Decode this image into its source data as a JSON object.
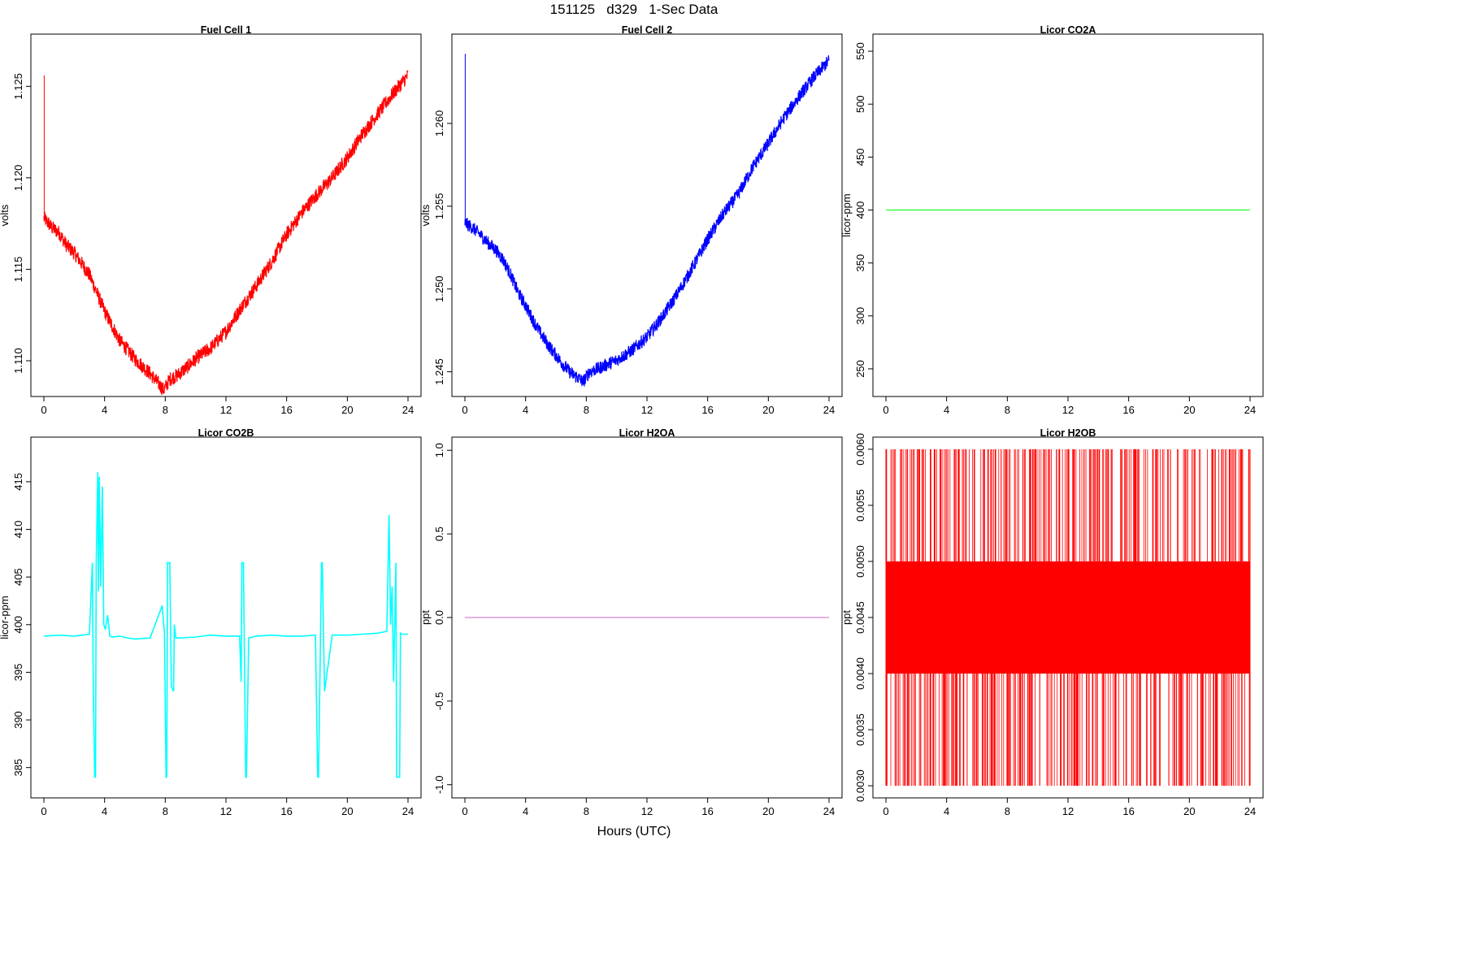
{
  "figure": {
    "title": "151125   d329   1-Sec Data",
    "xlabel": "Hours (UTC)"
  },
  "chart_data": [
    {
      "type": "line",
      "title": "Fuel Cell 1",
      "ylabel": "volts",
      "color": "#ff0000",
      "xlim": [
        0,
        24
      ],
      "ylim": [
        1.1084,
        1.1275
      ],
      "xticks": [
        0,
        4,
        8,
        12,
        16,
        20,
        24
      ],
      "yticks": [
        "1.110",
        "1.115",
        "1.120",
        "1.125"
      ],
      "noise": 0.0004,
      "spike": {
        "x": 0.02,
        "y_from": 1.118,
        "y_to": 1.1256
      },
      "x": [
        0,
        0.5,
        1,
        1.5,
        2,
        2.5,
        3,
        3.5,
        4,
        4.5,
        5,
        5.5,
        6,
        6.5,
        7,
        7.5,
        7.9,
        8.3,
        8.8,
        9.5,
        10,
        11,
        12,
        13,
        14,
        15,
        16,
        17,
        18,
        19,
        20,
        21,
        22,
        23,
        24
      ],
      "y": [
        1.1178,
        1.1173,
        1.117,
        1.1163,
        1.1159,
        1.1153,
        1.1147,
        1.1137,
        1.1127,
        1.1119,
        1.1111,
        1.1106,
        1.1101,
        1.1097,
        1.1093,
        1.1088,
        1.1084,
        1.109,
        1.1092,
        1.1097,
        1.1101,
        1.1107,
        1.1116,
        1.1129,
        1.1141,
        1.1154,
        1.1169,
        1.1181,
        1.1191,
        1.12,
        1.1211,
        1.1224,
        1.1235,
        1.1246,
        1.1256
      ]
    },
    {
      "type": "line",
      "title": "Fuel Cell 2",
      "ylabel": "volts",
      "color": "#0000ff",
      "xlim": [
        0,
        24
      ],
      "ylim": [
        1.2439,
        1.265
      ],
      "xticks": [
        0,
        4,
        8,
        12,
        16,
        20,
        24
      ],
      "yticks": [
        "1.245",
        "1.250",
        "1.255",
        "1.260"
      ],
      "noise": 0.0004,
      "spike": {
        "x": 0.02,
        "y_from": 1.2542,
        "y_to": 1.2642
      },
      "x": [
        0,
        0.5,
        1,
        1.5,
        2,
        2.5,
        3,
        3.5,
        4,
        4.5,
        5,
        5.5,
        6,
        6.5,
        7,
        7.5,
        7.8,
        8.2,
        8.8,
        9.5,
        10,
        11,
        12,
        13,
        14,
        15,
        16,
        17,
        18,
        19,
        20,
        21,
        22,
        23,
        24
      ],
      "y": [
        1.254,
        1.2537,
        1.2533,
        1.2528,
        1.2524,
        1.2518,
        1.2509,
        1.2498,
        1.249,
        1.2481,
        1.2473,
        1.2466,
        1.246,
        1.2454,
        1.2449,
        1.2446,
        1.2444,
        1.245,
        1.2452,
        1.2455,
        1.2457,
        1.2463,
        1.2471,
        1.2483,
        1.2497,
        1.2513,
        1.253,
        1.2545,
        1.2557,
        1.2574,
        1.2588,
        1.2603,
        1.2616,
        1.2628,
        1.2638
      ]
    },
    {
      "type": "line",
      "title": "Licor CO2A",
      "ylabel": "licor-ppm",
      "color": "#00ff00",
      "xlim": [
        0,
        24
      ],
      "ylim": [
        230,
        560
      ],
      "xticks": [
        0,
        4,
        8,
        12,
        16,
        20,
        24
      ],
      "yticks": [
        "250",
        "300",
        "350",
        "400",
        "450",
        "500",
        "550"
      ],
      "x": [
        0,
        24
      ],
      "y": [
        400,
        400
      ]
    },
    {
      "type": "line",
      "title": "Licor CO2B",
      "ylabel": "licor-ppm",
      "color": "#00ffff",
      "xlim": [
        0,
        24
      ],
      "ylim": [
        382.5,
        419
      ],
      "xticks": [
        0,
        4,
        8,
        12,
        16,
        20,
        24
      ],
      "yticks": [
        "385",
        "390",
        "395",
        "400",
        "405",
        "410",
        "415"
      ],
      "x": [
        0,
        1,
        2,
        3,
        3.2,
        3.25,
        3.35,
        3.4,
        3.45,
        3.55,
        3.6,
        3.65,
        3.75,
        3.85,
        3.95,
        4.05,
        4.2,
        4.35,
        4.5,
        5,
        5.5,
        6,
        7,
        7.8,
        7.95,
        8.05,
        8.1,
        8.15,
        8.3,
        8.4,
        8.55,
        8.6,
        8.7,
        9,
        10,
        11,
        12,
        12.9,
        13.0,
        13.05,
        13.15,
        13.3,
        13.35,
        13.5,
        14,
        15,
        16,
        17,
        17.9,
        18.05,
        18.1,
        18.3,
        18.35,
        18.5,
        19,
        20,
        21,
        22,
        22.6,
        22.75,
        22.85,
        22.95,
        23.05,
        23.2,
        23.25,
        23.45,
        23.5,
        23.6,
        24
      ],
      "y": [
        398.8,
        398.9,
        398.8,
        399.0,
        406.5,
        394.0,
        384.0,
        384.0,
        406.5,
        416.0,
        403.5,
        415.5,
        404.0,
        414.5,
        400.0,
        399.5,
        401.0,
        398.8,
        398.7,
        398.8,
        398.6,
        398.5,
        398.6,
        402.0,
        399.0,
        384.0,
        384.0,
        406.5,
        406.5,
        393.5,
        393.0,
        400.0,
        398.6,
        398.6,
        398.7,
        398.9,
        398.8,
        398.8,
        394.0,
        406.5,
        406.5,
        384.0,
        384.0,
        398.6,
        398.8,
        398.9,
        398.8,
        398.8,
        398.9,
        384.0,
        384.0,
        406.5,
        406.5,
        393.0,
        398.9,
        398.9,
        399.0,
        399.1,
        399.3,
        411.5,
        400.0,
        404.0,
        394.0,
        406.5,
        384.0,
        384.0,
        399.1,
        399.0,
        399.0
      ]
    },
    {
      "type": "line",
      "title": "Licor H2OA",
      "ylabel": "ppt",
      "color": "#cc66cc",
      "xlim": [
        0,
        24
      ],
      "ylim": [
        -1.04,
        1.04
      ],
      "xticks": [
        0,
        4,
        8,
        12,
        16,
        20,
        24
      ],
      "yticks": [
        "-1.0",
        "-0.5",
        "0.0",
        "0.5",
        "1.0"
      ],
      "x": [
        0,
        24
      ],
      "y": [
        0,
        0
      ]
    },
    {
      "type": "line",
      "title": "Licor H2OB",
      "ylabel": "ppt",
      "color": "#ff0000",
      "xlim": [
        0,
        24
      ],
      "ylim": [
        0.00295,
        0.00605
      ],
      "xticks": [
        0,
        4,
        8,
        12,
        16,
        20,
        24
      ],
      "yticks": [
        "0.0030",
        "0.0035",
        "0.0040",
        "0.0045",
        "0.0050",
        "0.0055",
        "0.0060"
      ],
      "band": {
        "low": 0.004,
        "high": 0.005
      },
      "spike_values": {
        "high": 0.006,
        "low": 0.003
      }
    }
  ]
}
